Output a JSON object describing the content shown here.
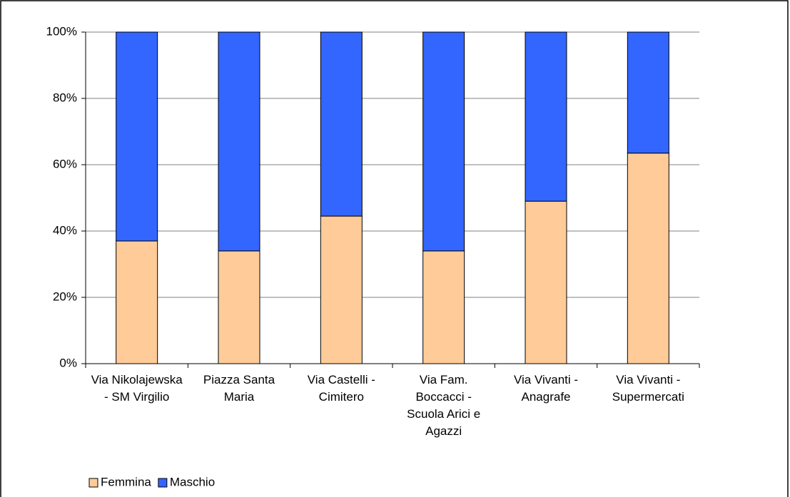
{
  "chart_data": {
    "type": "stacked_bar",
    "categories": [
      "Via Nikolajewska - SM Virgilio",
      "Piazza Santa Maria",
      "Via Castelli - Cimitero",
      "Via Fam. Boccacci - Scuola Arici e Agazzi",
      "Via Vivanti - Anagrafe",
      "Via Vivanti - Supermercati"
    ],
    "series": [
      {
        "name": "Femmina",
        "color": "#FFCC99",
        "values": [
          37,
          34,
          44.5,
          34,
          49,
          63.5
        ]
      },
      {
        "name": "Maschio",
        "color": "#3366FF",
        "values": [
          63,
          66,
          55.5,
          66,
          51,
          36.5
        ]
      }
    ],
    "ylim": [
      0,
      100
    ],
    "yticks": [
      {
        "value": 0,
        "label": "0%"
      },
      {
        "value": 20,
        "label": "20%"
      },
      {
        "value": 40,
        "label": "40%"
      },
      {
        "value": 60,
        "label": "60%"
      },
      {
        "value": 80,
        "label": "80%"
      },
      {
        "value": 100,
        "label": "100%"
      }
    ],
    "grid": true,
    "legend": "bottom-left"
  }
}
